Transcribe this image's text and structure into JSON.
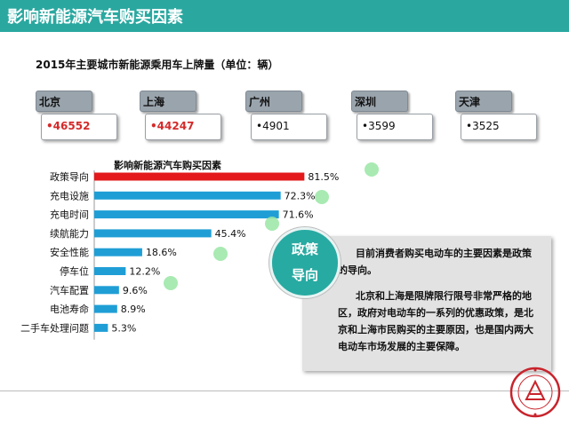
{
  "header": {
    "title": "影响新能源汽车购买因素"
  },
  "subtitle": "2015年主要城市新能源乘用车上牌量（单位：辆）",
  "cities": [
    {
      "name": "北京",
      "value": "•46552",
      "highlight": true
    },
    {
      "name": "上海",
      "value": "•44247",
      "highlight": true
    },
    {
      "name": "广州",
      "value": "•4901",
      "highlight": false
    },
    {
      "name": "深圳",
      "value": "•3599",
      "highlight": false
    },
    {
      "name": "天津",
      "value": "•3525",
      "highlight": false
    }
  ],
  "colors": {
    "header": "#2aa8a0",
    "bar": "#1f9ed6",
    "bar_top": "#e3191b",
    "circle": "#27aaa2"
  },
  "chart_data": {
    "type": "bar",
    "orientation": "horizontal",
    "title": "影响新能源汽车购买因素",
    "categories": [
      "政策导向",
      "充电设施",
      "充电时间",
      "续航能力",
      "安全性能",
      "停车位",
      "汽车配置",
      "电池寿命",
      "二手车处理问题"
    ],
    "values": [
      81.5,
      72.3,
      71.6,
      45.4,
      18.6,
      12.2,
      9.6,
      8.9,
      5.3
    ],
    "value_labels": [
      "81.5%",
      "72.3%",
      "71.6%",
      "45.4%",
      "18.6%",
      "12.2%",
      "9.6%",
      "8.9%",
      "5.3%"
    ],
    "xlim": [
      0,
      100
    ]
  },
  "callout": {
    "line1": "政策",
    "line2": "导向"
  },
  "info": {
    "p1": "目前消费者购买电动车的主要因素是政策的导向。",
    "p2": "北京和上海是限牌限行限号非常严格的地区，政府对电动车的一系列的优惠政策，是北京和上海市民购买的主要原因，也是国内两大电动车市场发展的主要保障。"
  }
}
